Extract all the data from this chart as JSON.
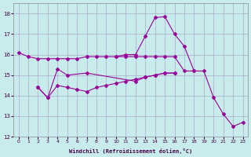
{
  "xlabel": "Windchill (Refroidissement éolien,°C)",
  "x_ticks": [
    0,
    1,
    2,
    3,
    4,
    5,
    6,
    7,
    8,
    9,
    10,
    11,
    12,
    13,
    14,
    15,
    16,
    17,
    18,
    19,
    20,
    21,
    22,
    23
  ],
  "ylim": [
    12,
    18.5
  ],
  "xlim": [
    -0.5,
    23.5
  ],
  "yticks": [
    12,
    13,
    14,
    15,
    16,
    17,
    18
  ],
  "bg_color": "#c8ecec",
  "grid_color": "#aaaacc",
  "line_color": "#990099",
  "line1_x": [
    0,
    1,
    2,
    3,
    4,
    5,
    6,
    7,
    8,
    9,
    10,
    11,
    12,
    13,
    14,
    15,
    16,
    17,
    18,
    19,
    20,
    21,
    22,
    23
  ],
  "line1_y": [
    16.1,
    15.9,
    15.8,
    15.8,
    15.8,
    15.8,
    15.8,
    15.9,
    15.9,
    15.9,
    15.9,
    15.9,
    15.9,
    15.9,
    15.9,
    15.9,
    15.9,
    15.2,
    15.2,
    15.2,
    13.9,
    13.1,
    12.5,
    12.7
  ],
  "line2_x": [
    2,
    3,
    4,
    5,
    7,
    12,
    13,
    14,
    15,
    16
  ],
  "line2_y": [
    14.4,
    13.9,
    15.3,
    15.0,
    15.1,
    14.7,
    14.9,
    15.0,
    15.1,
    15.1
  ],
  "line3_x": [
    2,
    3,
    4,
    5,
    6,
    7,
    8,
    9,
    10,
    11,
    12,
    13,
    14,
    15,
    16
  ],
  "line3_y": [
    14.4,
    13.9,
    14.5,
    14.4,
    14.3,
    14.2,
    14.4,
    14.5,
    14.6,
    14.7,
    14.8,
    14.9,
    15.0,
    15.1,
    15.1
  ],
  "line4_x": [
    10,
    11,
    12,
    13,
    14,
    15,
    16,
    17,
    18
  ],
  "line4_y": [
    15.9,
    16.0,
    16.0,
    16.9,
    17.8,
    17.85,
    17.0,
    16.4,
    15.2
  ]
}
